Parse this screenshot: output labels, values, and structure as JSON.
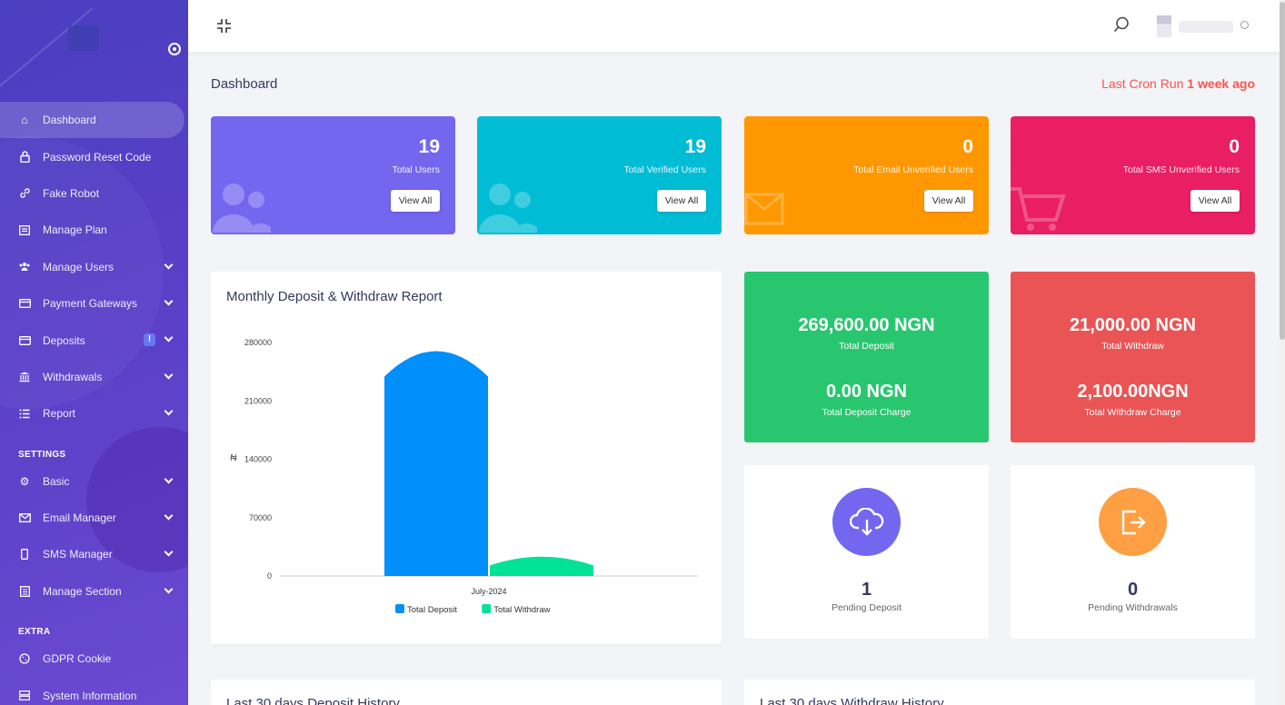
{
  "sidebar": {
    "items": [
      {
        "label": "Dashboard",
        "icon": "home-icon",
        "active": true
      },
      {
        "label": "Password Reset Code",
        "icon": "lock-icon"
      },
      {
        "label": "Fake Robot",
        "icon": "link-icon"
      },
      {
        "label": "Manage Plan",
        "icon": "plan-icon"
      },
      {
        "label": "Manage Users",
        "icon": "users-icon",
        "has_submenu": true
      },
      {
        "label": "Payment Gateways",
        "icon": "credit-card-icon",
        "has_submenu": true
      },
      {
        "label": "Deposits",
        "icon": "wallet-icon",
        "has_submenu": true,
        "badge": "!"
      },
      {
        "label": "Withdrawals",
        "icon": "bank-icon",
        "has_submenu": true
      },
      {
        "label": "Report",
        "icon": "list-icon",
        "has_submenu": true
      }
    ],
    "settings_heading": "SETTINGS",
    "settings_items": [
      {
        "label": "Basic",
        "icon": "gear-icon",
        "has_submenu": true
      },
      {
        "label": "Email Manager",
        "icon": "envelope-icon",
        "has_submenu": true
      },
      {
        "label": "SMS Manager",
        "icon": "mobile-icon",
        "has_submenu": true
      },
      {
        "label": "Manage Section",
        "icon": "section-icon",
        "has_submenu": true
      }
    ],
    "extra_heading": "EXTRA",
    "extra_items": [
      {
        "label": "GDPR Cookie",
        "icon": "cookie-icon"
      },
      {
        "label": "System Information",
        "icon": "server-icon"
      }
    ]
  },
  "header": {
    "page_title": "Dashboard",
    "cron_prefix": "Last Cron Run ",
    "cron_value": "1 week ago"
  },
  "stats": [
    {
      "value": "19",
      "label": "Total Users",
      "button": "View All",
      "color": "#7367f0",
      "icon": "users-icon"
    },
    {
      "value": "19",
      "label": "Total Verified Users",
      "button": "View All",
      "color": "#00bcd4",
      "icon": "users-icon"
    },
    {
      "value": "0",
      "label": "Total Email Unverified Users",
      "button": "View All",
      "color": "#ff9800",
      "icon": "envelope-icon"
    },
    {
      "value": "0",
      "label": "Total SMS Unverified Users",
      "button": "View All",
      "color": "#e91e63",
      "icon": "cart-icon"
    }
  ],
  "money": {
    "deposit": {
      "total": "269,600.00 NGN",
      "total_label": "Total Deposit",
      "charge": "0.00 NGN",
      "charge_label": "Total Deposit Charge",
      "color": "#28c76f"
    },
    "withdraw": {
      "total": "21,000.00 NGN",
      "total_label": "Total Withdraw",
      "charge": "2,100.00NGN",
      "charge_label": "Total Withdraw Charge",
      "color": "#ea5455"
    }
  },
  "pending": {
    "deposit": {
      "value": "1",
      "label": "Pending Deposit",
      "color": "#7367f0",
      "icon": "cloud-download-icon"
    },
    "withdraw": {
      "value": "0",
      "label": "Pending Withdrawals",
      "color": "#ff9f43",
      "icon": "sign-out-icon"
    }
  },
  "history": {
    "deposit_title": "Last 30 days Deposit History",
    "withdraw_title": "Last 30 days Withdraw History"
  },
  "chart_data": {
    "type": "bar",
    "title": "Monthly Deposit & Withdraw Report",
    "categories": [
      "July-2024"
    ],
    "series": [
      {
        "name": "Total Deposit",
        "values": [
          269600
        ],
        "color": "#008ffb"
      },
      {
        "name": "Total Withdraw",
        "values": [
          21000
        ],
        "color": "#00e396"
      }
    ],
    "ylabel": "₦",
    "yticks": [
      0,
      70000,
      140000,
      210000,
      280000
    ],
    "ylim": [
      0,
      280000
    ],
    "legend": "bottom"
  }
}
